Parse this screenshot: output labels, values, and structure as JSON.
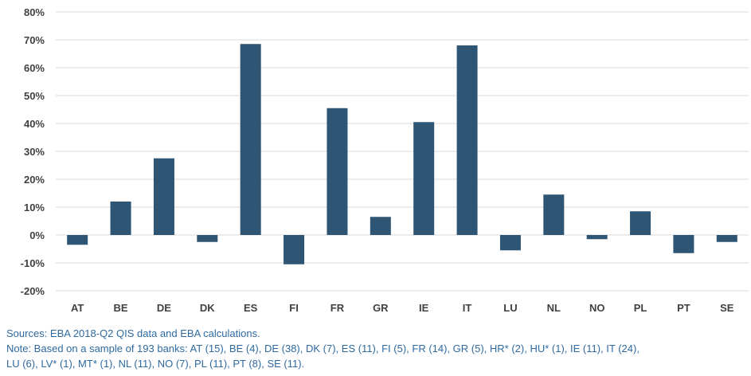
{
  "chart_data": {
    "type": "bar",
    "categories": [
      "AT",
      "BE",
      "DE",
      "DK",
      "ES",
      "FI",
      "FR",
      "GR",
      "IE",
      "IT",
      "LU",
      "NL",
      "NO",
      "PL",
      "PT",
      "SE"
    ],
    "values": [
      -3.5,
      12,
      27.5,
      -2.5,
      68.5,
      -10.5,
      45.5,
      6.5,
      40.5,
      68,
      -5.5,
      14.5,
      -1.5,
      8.5,
      -6.5,
      -2.5
    ],
    "title": "",
    "xlabel": "",
    "ylabel": "",
    "ylim": [
      -20,
      80
    ],
    "yticks": [
      "80%",
      "70%",
      "60%",
      "50%",
      "40%",
      "30%",
      "20%",
      "10%",
      "0%",
      "-10%",
      "-20%"
    ],
    "grid": true,
    "bar_color": "#2e5573",
    "grid_color": "#d9d9d9"
  },
  "notes": {
    "sources": "Sources: EBA 2018-Q2 QIS data and EBA calculations.",
    "note_line1": "Note: Based on a sample of 193 banks: AT (15), BE (4), DE (38), DK (7), ES (11), FI (5), FR (14), GR (5), HR* (2), HU* (1), IE (11), IT (24),",
    "note_line2": "LU (6), LV* (1), MT* (1), NL (11), NO (7), PL (11), PT (8), SE (11).",
    "color": "#2e6aa0"
  }
}
